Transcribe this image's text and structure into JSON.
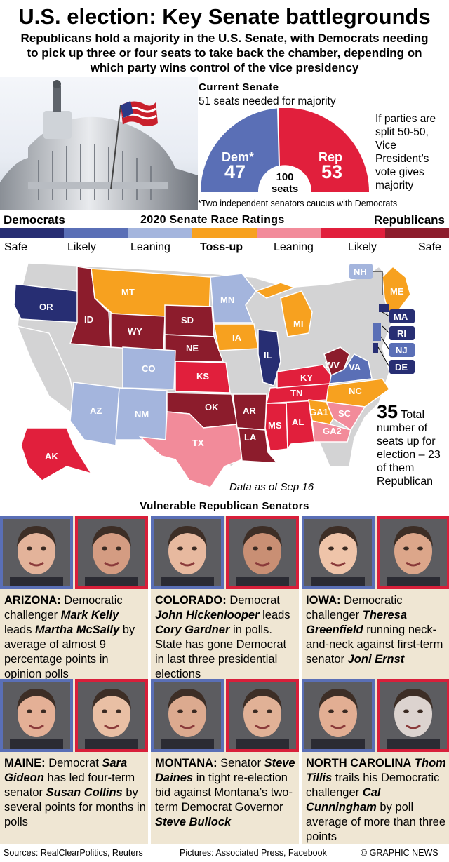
{
  "header": {
    "title": "U.S. election: Key Senate battlegrounds",
    "subtitle": "Republicans hold a majority in the U.S. Senate, with Democrats needing to pick up three or four seats to take back the chamber, depending on which party wins control of the vice presidency"
  },
  "current_senate": {
    "heading": "Current Senate",
    "majority_note": "51 seats needed for majority",
    "dem_label": "Dem*",
    "dem_seats": "47",
    "rep_label": "Rep",
    "rep_seats": "53",
    "total_number": "100",
    "total_label": "seats",
    "split_note": "If parties are split 50-50, Vice President’s vote gives majority",
    "footnote": "*Two independent senators caucus with Democrats",
    "colors": {
      "dem": "#5a6fb6",
      "rep": "#e11f3c"
    }
  },
  "ratings": {
    "left_label": "Democrats",
    "center_label": "2020 Senate Race Ratings",
    "right_label": "Republicans",
    "scale": [
      {
        "label": "Safe",
        "color": "#272e73"
      },
      {
        "label": "Likely",
        "color": "#5a6fb6"
      },
      {
        "label": "Leaning",
        "color": "#a4b5dd"
      },
      {
        "label": "Toss-up",
        "color": "#f7a11f"
      },
      {
        "label": "Leaning",
        "color": "#f28b9a"
      },
      {
        "label": "Likely",
        "color": "#e11f3c"
      },
      {
        "label": "Safe",
        "color": "#8c1c2c"
      }
    ]
  },
  "map": {
    "states": {
      "OR": "OR",
      "ID": "ID",
      "MT": "MT",
      "WY": "WY",
      "SD": "SD",
      "NE": "NE",
      "MN": "MN",
      "IA": "IA",
      "MI": "MI",
      "IL": "IL",
      "CO": "CO",
      "KS": "KS",
      "AZ": "AZ",
      "NM": "NM",
      "OK": "OK",
      "TX": "TX",
      "AR": "AR",
      "LA": "LA",
      "MS": "MS",
      "AL": "AL",
      "TN": "TN",
      "KY": "KY",
      "WV": "WV",
      "VA": "VA",
      "NC": "NC",
      "SC": "SC",
      "GA1": "GA1",
      "GA2": "GA2",
      "AK": "AK",
      "ME": "ME",
      "NH": "NH",
      "MA": "MA",
      "RI": "RI",
      "NJ": "NJ",
      "DE": "DE"
    },
    "total_number": "35",
    "total_text": "Total number of seats up for election – 23 of them Republican",
    "data_asof": "Data as of Sep 16"
  },
  "vulnerable": {
    "heading": "Vulnerable Republican Senators",
    "races": [
      {
        "state": "ARIZONA:",
        "parts": [
          " Democratic challenger ",
          "Mark Kelly",
          " leads ",
          "Martha McSally",
          " by average of almost 9 percentage points in opinion polls"
        ]
      },
      {
        "state": "COLORADO:",
        "parts": [
          " Democrat ",
          "John Hickenlooper",
          " leads ",
          "Cory Gardner",
          " in polls. State has gone Democrat in last three presidential elections"
        ]
      },
      {
        "state": "IOWA:",
        "parts": [
          " Democratic challenger ",
          "Theresa Greenfield",
          " running neck-and-neck against first-term senator ",
          "Joni Ernst",
          ""
        ]
      },
      {
        "state": "MAINE:",
        "parts": [
          " Democrat ",
          "Sara Gideon",
          " has led four-term senator ",
          "Susan Collins",
          " by several points for months in polls"
        ]
      },
      {
        "state": "MONTANA:",
        "parts": [
          " Senator ",
          "Steve Daines",
          " in tight re-election bid against Montana’s two-term Democrat Governor ",
          "Steve Bullock",
          ""
        ]
      },
      {
        "state": "NORTH CAROLINA",
        "parts": [
          " ",
          "Thom Tillis",
          " trails his Democratic challenger ",
          "Cal Cunningham",
          " by poll average of more than three points"
        ]
      }
    ]
  },
  "footer": {
    "sources": "Sources: RealClearPolitics, Reuters",
    "pictures": "Pictures: Associated Press, Facebook",
    "credit": "© GRAPHIC NEWS"
  }
}
